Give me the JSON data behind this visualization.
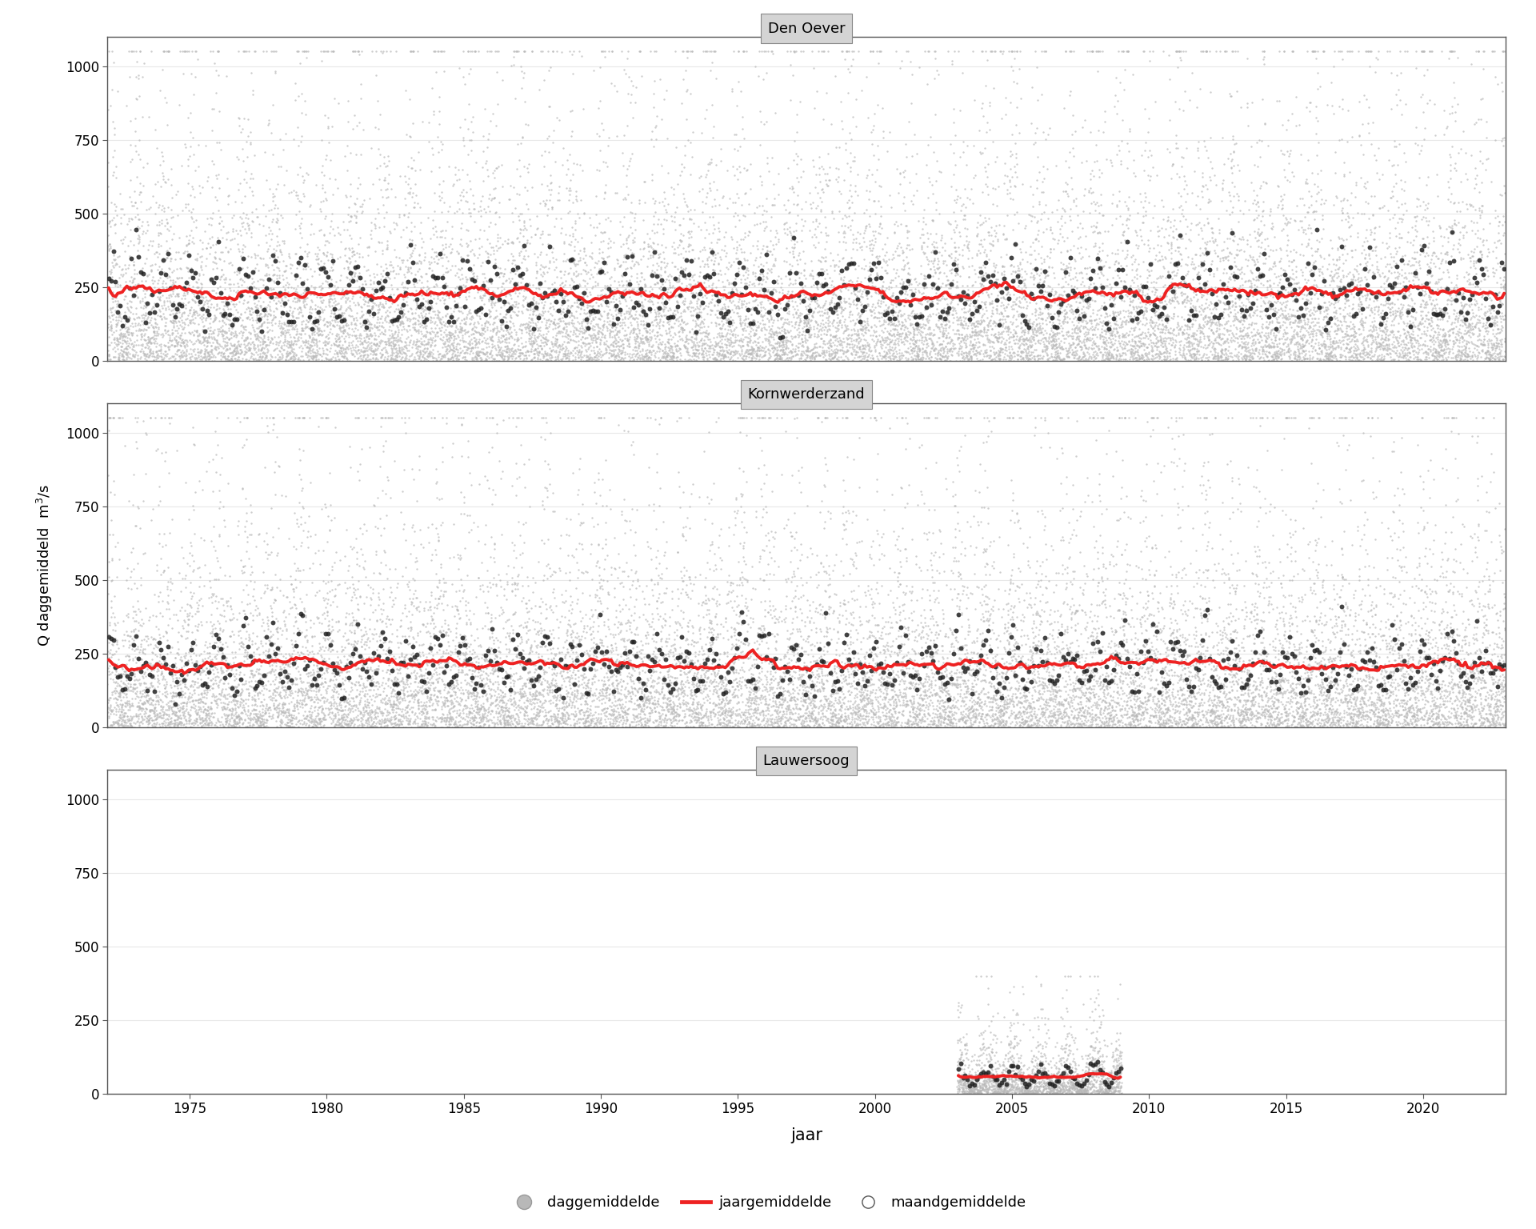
{
  "stations": [
    "Den Oever",
    "Kornwerderzand",
    "Lauwersoog"
  ],
  "ylim": [
    0,
    1100
  ],
  "yticks": [
    0,
    250,
    500,
    750,
    1000
  ],
  "ylabel": "Q daggemiddeld  m^3/s",
  "xlabel": "jaar",
  "title_bg_color": "#d4d4d4",
  "daily_color": "#b8b8b8",
  "monthly_color": "#222222",
  "annual_color": "#ee2222",
  "background_color": "#ffffff",
  "grid_color": "#e8e8e8",
  "legend_labels": [
    "daggemiddelde",
    "jaargemiddelde",
    "maandgemiddelde"
  ],
  "xticks": [
    1975,
    1980,
    1985,
    1990,
    1995,
    2000,
    2005,
    2010,
    2015,
    2020
  ],
  "xmin": 1972,
  "xmax": 2023
}
